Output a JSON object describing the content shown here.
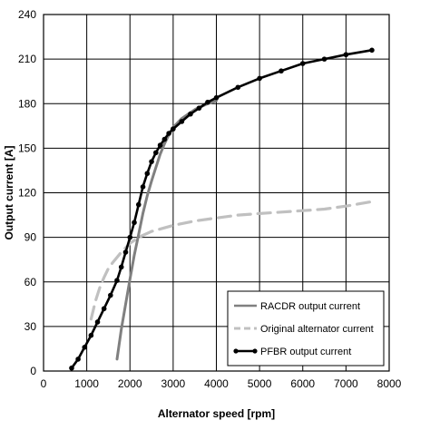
{
  "chart_data": {
    "type": "line",
    "xlabel": "Alternator speed [rpm]",
    "ylabel": "Output current [A]",
    "xlim": [
      0,
      8000
    ],
    "ylim": [
      0,
      240
    ],
    "xticks": [
      0,
      1000,
      2000,
      3000,
      4000,
      5000,
      6000,
      7000,
      8000
    ],
    "yticks": [
      0,
      30,
      60,
      90,
      120,
      150,
      180,
      210,
      240
    ],
    "grid": true,
    "legend_position": "bottom-right",
    "series": [
      {
        "name": "RACDR output current",
        "color": "#808080",
        "style": "solid",
        "markers": false,
        "x": [
          1700,
          1800,
          1900,
          2000,
          2100,
          2200,
          2300,
          2400,
          2500,
          2600,
          2700,
          2800,
          2900,
          3000,
          3200,
          3500,
          3800,
          4000
        ],
        "y": [
          8,
          28,
          45,
          62,
          78,
          92,
          106,
          118,
          128,
          137,
          146,
          153,
          159,
          164,
          170,
          176,
          180,
          182
        ]
      },
      {
        "name": "Original alternator current",
        "color": "#c0c0c0",
        "style": "dashed",
        "markers": false,
        "x": [
          1100,
          1200,
          1300,
          1400,
          1500,
          1600,
          1800,
          2000,
          2200,
          2500,
          3000,
          3500,
          4000,
          4500,
          5000,
          5500,
          6000,
          6500,
          7000,
          7600
        ],
        "y": [
          35,
          47,
          56,
          63,
          69,
          73,
          80,
          86,
          90,
          94,
          98,
          101,
          103,
          105,
          106,
          107,
          108,
          109,
          111,
          114
        ]
      },
      {
        "name": "PFBR output current",
        "color": "#000000",
        "style": "solid",
        "markers": true,
        "x": [
          650,
          800,
          950,
          1100,
          1250,
          1400,
          1550,
          1700,
          1800,
          1900,
          2000,
          2100,
          2200,
          2300,
          2400,
          2500,
          2600,
          2700,
          2800,
          2900,
          3000,
          3200,
          3400,
          3600,
          3800,
          4000,
          4500,
          5000,
          5500,
          6000,
          6500,
          7000,
          7600
        ],
        "y": [
          2,
          8,
          16,
          24,
          33,
          42,
          51,
          61,
          70,
          80,
          90,
          100,
          112,
          124,
          133,
          141,
          147,
          152,
          156,
          160,
          163,
          168,
          173,
          177,
          181,
          184,
          191,
          197,
          202,
          207,
          210,
          213,
          216
        ]
      }
    ]
  }
}
